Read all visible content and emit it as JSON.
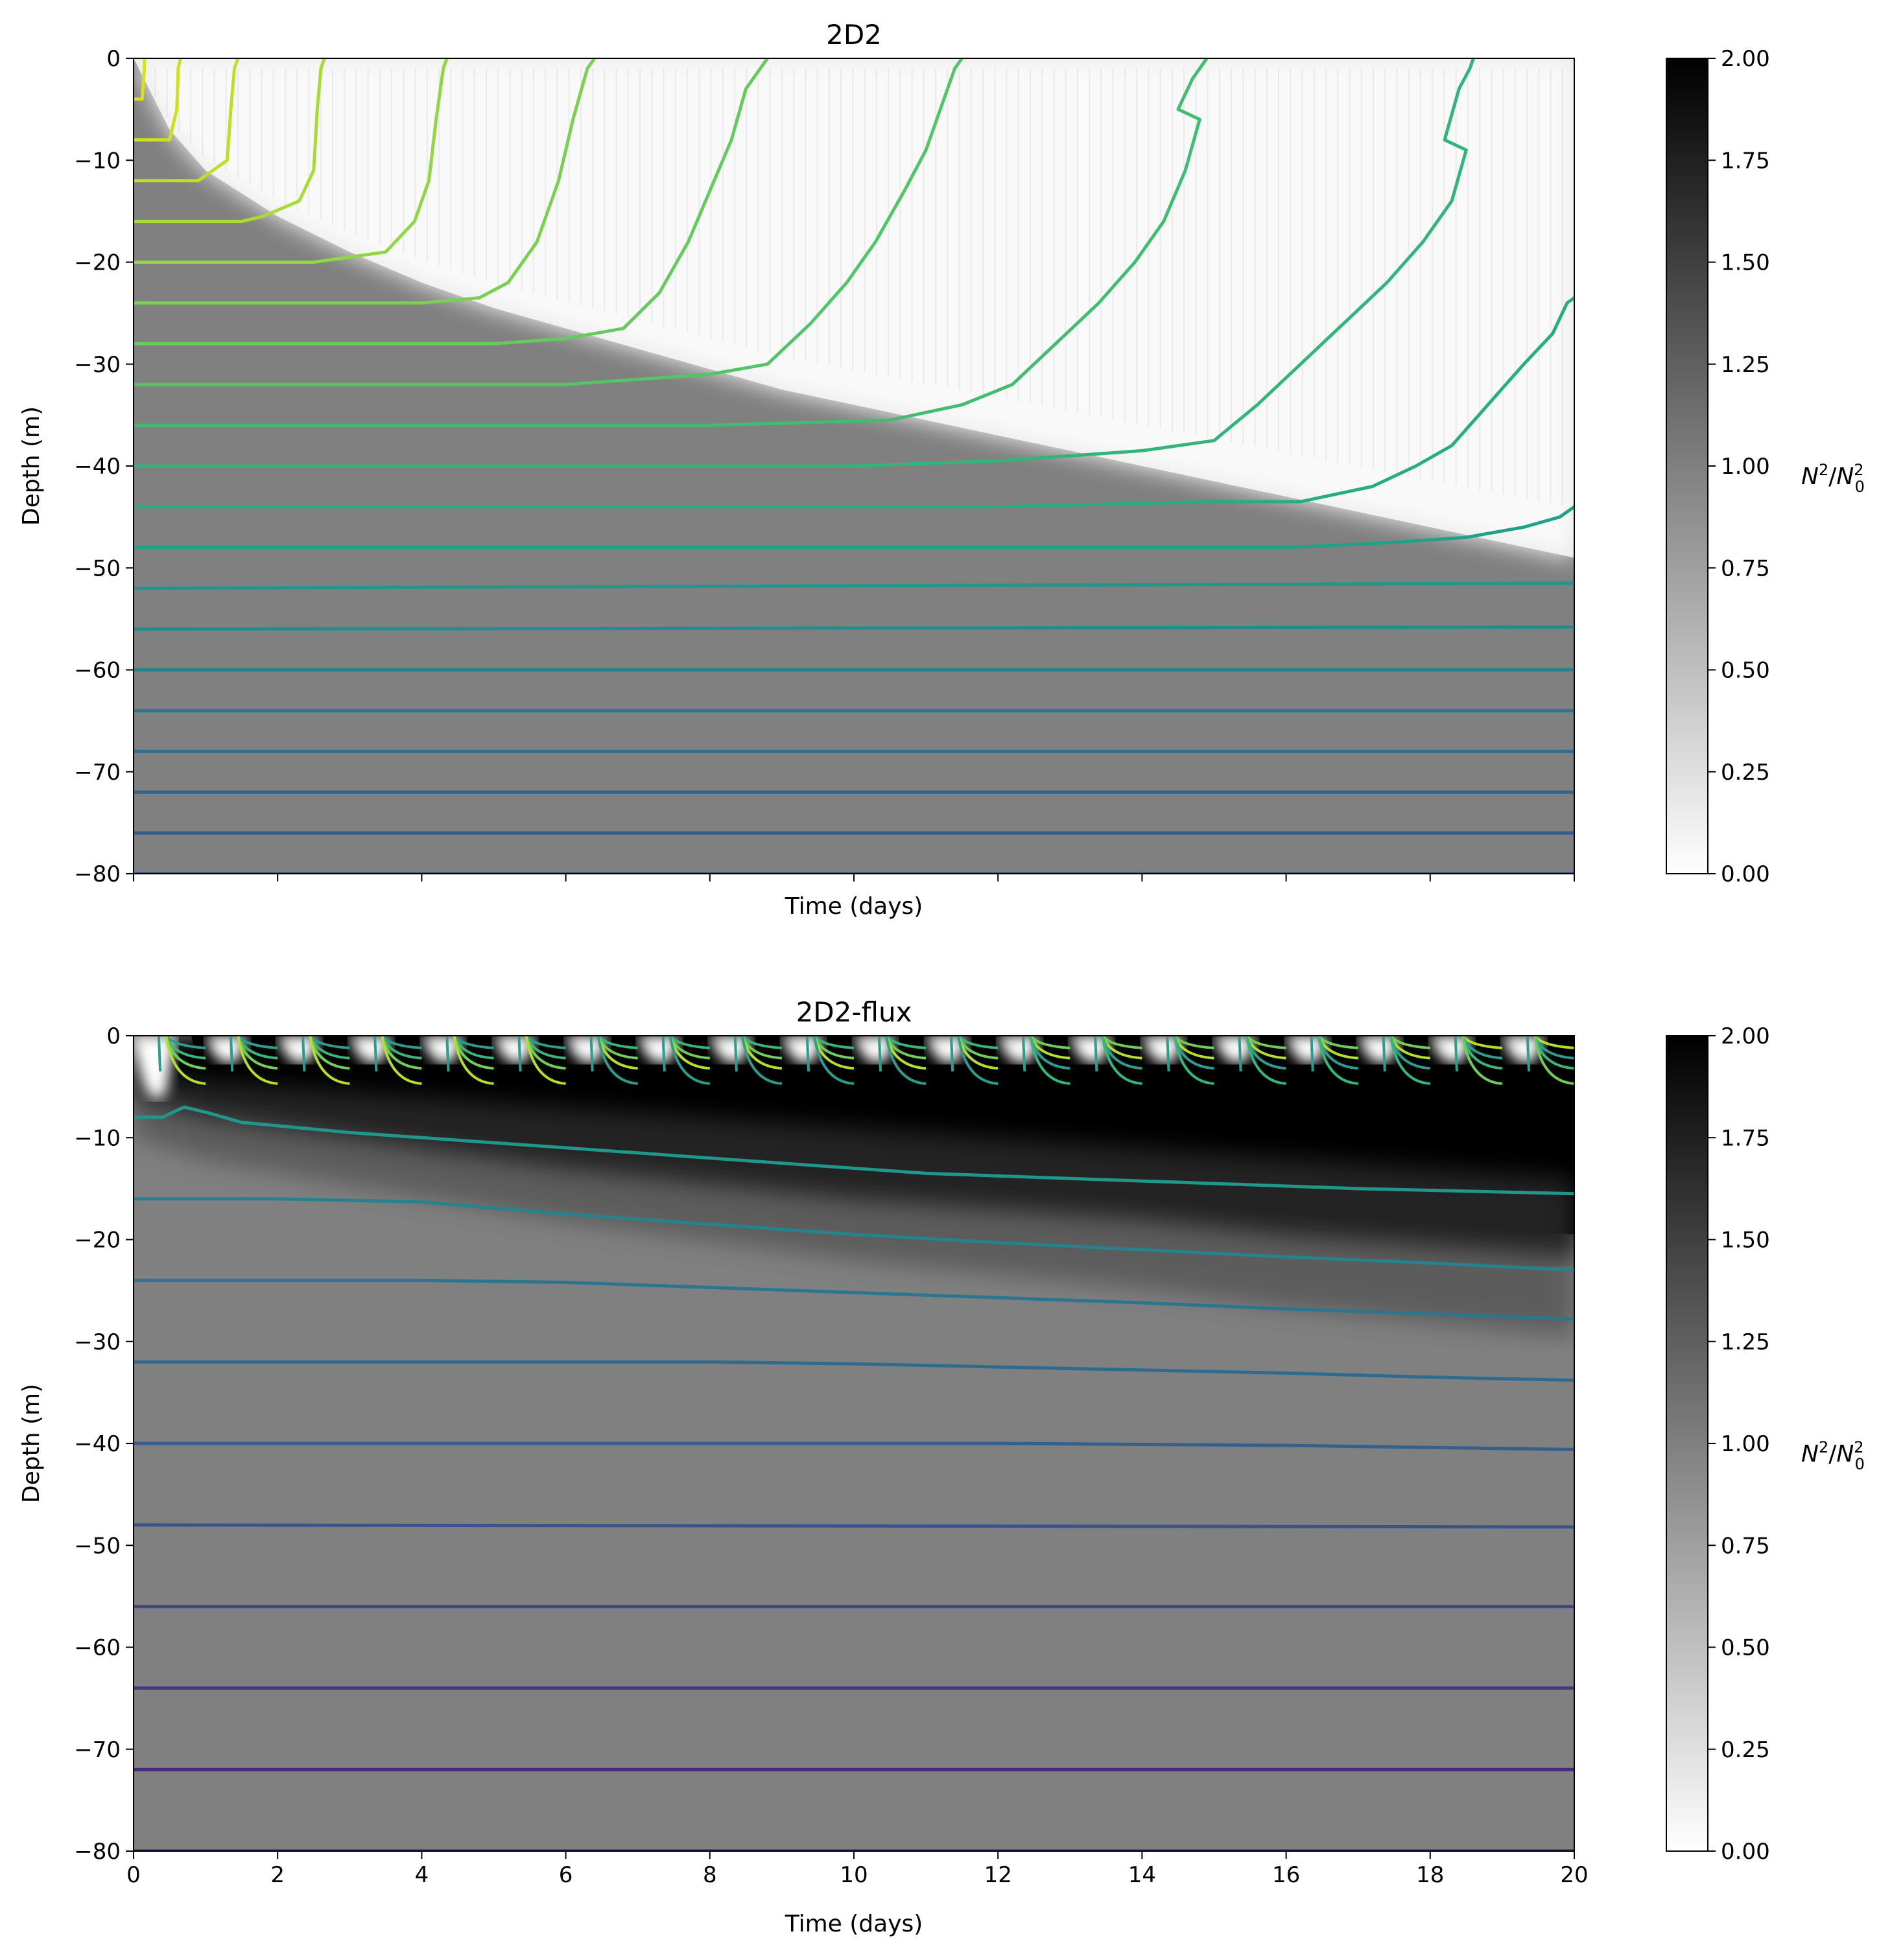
{
  "chart_data": [
    {
      "type": "heatmap",
      "title": "2D2",
      "xlabel": "Time (days)",
      "ylabel": "Depth (m)",
      "xlim": [
        0,
        20
      ],
      "ylim": [
        -80,
        0
      ],
      "x_ticks": [
        0,
        2,
        4,
        6,
        8,
        10,
        12,
        14,
        16,
        18,
        20
      ],
      "x_tick_labels_shown": false,
      "y_ticks": [
        0,
        -10,
        -20,
        -30,
        -40,
        -50,
        -60,
        -70,
        -80
      ],
      "y_tick_labels": [
        "0",
        "−10",
        "−20",
        "−30",
        "−40",
        "−50",
        "−60",
        "−70",
        "−80"
      ],
      "colorbar": {
        "label_base": "N",
        "label_sup": "2",
        "label_sep": "/",
        "label_base2": "N",
        "label_sub2": "0",
        "label_sup2": "2",
        "range": [
          0,
          2
        ],
        "ticks": [
          "0.00",
          "0.25",
          "0.50",
          "0.75",
          "1.00",
          "1.25",
          "1.50",
          "1.75",
          "2.00"
        ],
        "colormap": "greys"
      },
      "background_value": 1.0,
      "mixed_layer_value": 0.05,
      "mixed_layer_depth": {
        "x": [
          0,
          0.5,
          1,
          2,
          3,
          4,
          5,
          6,
          7,
          8,
          9,
          10,
          11,
          12,
          13,
          14,
          15,
          16,
          17,
          18,
          19,
          20
        ],
        "depth": [
          0,
          -7,
          -11,
          -15.5,
          -19,
          -22,
          -24.5,
          -26.5,
          -28.5,
          -30.5,
          -32.5,
          -34,
          -35.5,
          -37,
          -38.5,
          -40,
          -41.5,
          -43,
          -44.5,
          -46,
          -47.5,
          -49
        ]
      },
      "contour_colormap": "viridis",
      "contours": [
        {
          "level": -4,
          "color": "#d8e219",
          "points": [
            [
              0,
              -4
            ],
            [
              0.12,
              -4
            ],
            [
              0.15,
              -1
            ],
            [
              0.15,
              0
            ]
          ]
        },
        {
          "level": -8,
          "color": "#cde11d",
          "points": [
            [
              0,
              -8
            ],
            [
              0.5,
              -8
            ],
            [
              0.6,
              -5
            ],
            [
              0.62,
              -1
            ],
            [
              0.65,
              0
            ]
          ]
        },
        {
          "level": -12,
          "color": "#bddf26",
          "points": [
            [
              0,
              -12
            ],
            [
              0.9,
              -12
            ],
            [
              1.3,
              -10
            ],
            [
              1.35,
              -5
            ],
            [
              1.4,
              -1
            ],
            [
              1.45,
              0
            ]
          ]
        },
        {
          "level": -16,
          "color": "#a8db34",
          "points": [
            [
              0,
              -16
            ],
            [
              1.5,
              -16
            ],
            [
              1.8,
              -15.5
            ],
            [
              2.3,
              -14
            ],
            [
              2.5,
              -11
            ],
            [
              2.55,
              -5
            ],
            [
              2.6,
              -1
            ],
            [
              2.65,
              0
            ]
          ]
        },
        {
          "level": -20,
          "color": "#90d743",
          "points": [
            [
              0,
              -20
            ],
            [
              2.5,
              -20
            ],
            [
              3.0,
              -19.5
            ],
            [
              3.5,
              -19
            ],
            [
              3.9,
              -16
            ],
            [
              4.1,
              -12
            ],
            [
              4.2,
              -6
            ],
            [
              4.3,
              -1
            ],
            [
              4.35,
              0
            ]
          ]
        },
        {
          "level": -24,
          "color": "#7ad151",
          "points": [
            [
              0,
              -24
            ],
            [
              4,
              -24
            ],
            [
              4.8,
              -23.5
            ],
            [
              5.2,
              -22
            ],
            [
              5.6,
              -18
            ],
            [
              5.9,
              -12
            ],
            [
              6.1,
              -6
            ],
            [
              6.3,
              -1
            ],
            [
              6.4,
              0
            ]
          ]
        },
        {
          "level": -28,
          "color": "#65cb5e",
          "points": [
            [
              0,
              -28
            ],
            [
              5,
              -28
            ],
            [
              6,
              -27.5
            ],
            [
              6.8,
              -26.5
            ],
            [
              7.3,
              -23
            ],
            [
              7.7,
              -18
            ],
            [
              8.0,
              -13
            ],
            [
              8.3,
              -8
            ],
            [
              8.5,
              -3
            ],
            [
              8.7,
              -1
            ],
            [
              8.8,
              0
            ]
          ]
        },
        {
          "level": -32,
          "color": "#52c569",
          "points": [
            [
              0,
              -32
            ],
            [
              6,
              -32
            ],
            [
              8,
              -31
            ],
            [
              8.8,
              -30
            ],
            [
              9.4,
              -26
            ],
            [
              9.9,
              -22
            ],
            [
              10.3,
              -18
            ],
            [
              10.7,
              -13
            ],
            [
              11.0,
              -9
            ],
            [
              11.2,
              -5
            ],
            [
              11.4,
              -1
            ],
            [
              11.5,
              0
            ]
          ]
        },
        {
          "level": -36,
          "color": "#40bd72",
          "points": [
            [
              0,
              -36
            ],
            [
              8,
              -36
            ],
            [
              10.5,
              -35.5
            ],
            [
              11.5,
              -34
            ],
            [
              12.2,
              -32
            ],
            [
              12.8,
              -28
            ],
            [
              13.4,
              -24
            ],
            [
              13.9,
              -20
            ],
            [
              14.3,
              -16
            ],
            [
              14.6,
              -11
            ],
            [
              14.8,
              -6
            ],
            [
              14.5,
              -5
            ],
            [
              14.7,
              -2
            ],
            [
              14.8,
              -1
            ],
            [
              14.9,
              0
            ]
          ]
        },
        {
          "level": -40,
          "color": "#31b57b",
          "points": [
            [
              0,
              -40
            ],
            [
              10,
              -40
            ],
            [
              12,
              -39.5
            ],
            [
              13,
              -39
            ],
            [
              14,
              -38.5
            ],
            [
              15,
              -37.5
            ],
            [
              15.6,
              -34
            ],
            [
              16.2,
              -30
            ],
            [
              16.8,
              -26
            ],
            [
              17.4,
              -22
            ],
            [
              17.9,
              -18
            ],
            [
              18.3,
              -14
            ],
            [
              18.5,
              -9
            ],
            [
              18.2,
              -8
            ],
            [
              18.4,
              -3
            ],
            [
              18.55,
              -1
            ],
            [
              18.6,
              0
            ]
          ]
        },
        {
          "level": -44,
          "color": "#26ad81",
          "points": [
            [
              0,
              -44
            ],
            [
              12,
              -44
            ],
            [
              15,
              -43.5
            ],
            [
              16.2,
              -43.5
            ],
            [
              17.2,
              -42
            ],
            [
              17.8,
              -40
            ],
            [
              18.3,
              -38
            ],
            [
              18.8,
              -34
            ],
            [
              19.3,
              -30
            ],
            [
              19.7,
              -27
            ],
            [
              19.9,
              -24
            ],
            [
              20,
              -23.5
            ]
          ]
        },
        {
          "level": -48,
          "color": "#1fa287",
          "points": [
            [
              0,
              -48
            ],
            [
              14,
              -48
            ],
            [
              16,
              -48
            ],
            [
              17.5,
              -47.5
            ],
            [
              18.5,
              -47
            ],
            [
              19.3,
              -46
            ],
            [
              19.8,
              -45
            ],
            [
              20,
              -44
            ]
          ]
        },
        {
          "level": -52,
          "color": "#1f988b",
          "points": [
            [
              0,
              -52
            ],
            [
              20,
              -51.5
            ]
          ]
        },
        {
          "level": -56,
          "color": "#228d8d",
          "points": [
            [
              0,
              -56
            ],
            [
              20,
              -55.8
            ]
          ]
        },
        {
          "level": -60,
          "color": "#25838e",
          "points": [
            [
              0,
              -60
            ],
            [
              20,
              -60
            ]
          ]
        },
        {
          "level": -64,
          "color": "#29788e",
          "points": [
            [
              0,
              -64
            ],
            [
              20,
              -64
            ]
          ]
        },
        {
          "level": -68,
          "color": "#2c6e8e",
          "points": [
            [
              0,
              -68
            ],
            [
              20,
              -68
            ]
          ]
        },
        {
          "level": -72,
          "color": "#31648d",
          "points": [
            [
              0,
              -72
            ],
            [
              20,
              -72
            ]
          ]
        },
        {
          "level": -76,
          "color": "#365a8c",
          "points": [
            [
              0,
              -76
            ],
            [
              20,
              -76
            ]
          ]
        },
        {
          "level": -80,
          "color": "#3b518b",
          "points": [
            [
              0,
              -80
            ],
            [
              20,
              -80
            ]
          ]
        }
      ]
    },
    {
      "type": "heatmap",
      "title": "2D2-flux",
      "xlabel": "Time (days)",
      "ylabel": "Depth (m)",
      "xlim": [
        0,
        20
      ],
      "ylim": [
        -80,
        0
      ],
      "x_ticks": [
        0,
        2,
        4,
        6,
        8,
        10,
        12,
        14,
        16,
        18,
        20
      ],
      "x_tick_labels": [
        "0",
        "2",
        "4",
        "6",
        "8",
        "10",
        "12",
        "14",
        "16",
        "18",
        "20"
      ],
      "x_tick_labels_shown": true,
      "y_ticks": [
        0,
        -10,
        -20,
        -30,
        -40,
        -50,
        -60,
        -70,
        -80
      ],
      "y_tick_labels": [
        "0",
        "−10",
        "−20",
        "−30",
        "−40",
        "−50",
        "−60",
        "−70",
        "−80"
      ],
      "colorbar": {
        "label_base": "N",
        "label_sup": "2",
        "label_sep": "/",
        "label_base2": "N",
        "label_sub2": "0",
        "label_sup2": "2",
        "range": [
          0,
          2
        ],
        "ticks": [
          "0.00",
          "0.25",
          "0.50",
          "0.75",
          "1.00",
          "1.25",
          "1.50",
          "1.75",
          "2.00"
        ],
        "colormap": "greys"
      },
      "background_value": 1.0,
      "stratified_layer_value": 2.0,
      "stratified_layer_bottom": {
        "x": [
          0,
          1,
          2,
          4,
          6,
          8,
          10,
          12,
          14,
          16,
          18,
          20
        ],
        "depth": [
          -6,
          -8,
          -9,
          -11,
          -13,
          -14.5,
          -16,
          -17,
          -18,
          -19.5,
          -20.5,
          -21.5
        ]
      },
      "diurnal_cycles": 20,
      "contour_colormap": "viridis",
      "contours": [
        {
          "level": -8,
          "color": "#1f988b",
          "points": [
            [
              0,
              -8
            ],
            [
              0.4,
              -8
            ],
            [
              0.7,
              -7
            ],
            [
              1,
              -7.5
            ],
            [
              1.5,
              -8.5
            ],
            [
              3,
              -9.5
            ],
            [
              5,
              -10.5
            ],
            [
              7,
              -11.5
            ],
            [
              9,
              -12.5
            ],
            [
              11,
              -13.5
            ],
            [
              13,
              -14
            ],
            [
              15,
              -14.5
            ],
            [
              17,
              -15
            ],
            [
              20,
              -15.5
            ]
          ]
        },
        {
          "level": -16,
          "color": "#25838e",
          "points": [
            [
              0,
              -16
            ],
            [
              2,
              -16
            ],
            [
              4,
              -16.3
            ],
            [
              6,
              -17.5
            ],
            [
              8,
              -18.5
            ],
            [
              10,
              -19.5
            ],
            [
              12,
              -20.3
            ],
            [
              14,
              -21
            ],
            [
              16,
              -21.7
            ],
            [
              18,
              -22.3
            ],
            [
              20,
              -23
            ]
          ]
        },
        {
          "level": -24,
          "color": "#2a768e",
          "points": [
            [
              0,
              -24
            ],
            [
              4,
              -24
            ],
            [
              6,
              -24.2
            ],
            [
              8,
              -24.7
            ],
            [
              10,
              -25.2
            ],
            [
              12,
              -25.7
            ],
            [
              14,
              -26.2
            ],
            [
              16,
              -26.8
            ],
            [
              18,
              -27.3
            ],
            [
              20,
              -27.8
            ]
          ]
        },
        {
          "level": -32,
          "color": "#2f6b8e",
          "points": [
            [
              0,
              -32
            ],
            [
              8,
              -32
            ],
            [
              10,
              -32.2
            ],
            [
              12,
              -32.5
            ],
            [
              14,
              -32.8
            ],
            [
              16,
              -33.1
            ],
            [
              18,
              -33.5
            ],
            [
              20,
              -33.8
            ]
          ]
        },
        {
          "level": -40,
          "color": "#355f8d",
          "points": [
            [
              0,
              -40
            ],
            [
              12,
              -40
            ],
            [
              16,
              -40.2
            ],
            [
              20,
              -40.6
            ]
          ]
        },
        {
          "level": -48,
          "color": "#3b528b",
          "points": [
            [
              0,
              -48
            ],
            [
              20,
              -48.2
            ]
          ]
        },
        {
          "level": -56,
          "color": "#414487",
          "points": [
            [
              0,
              -56
            ],
            [
              20,
              -56
            ]
          ]
        },
        {
          "level": -64,
          "color": "#453781",
          "points": [
            [
              0,
              -64
            ],
            [
              20,
              -64
            ]
          ]
        },
        {
          "level": -72,
          "color": "#482878",
          "points": [
            [
              0,
              -72
            ],
            [
              20,
              -72
            ]
          ]
        },
        {
          "level": -80,
          "color": "#481a6c",
          "points": [
            [
              0,
              -80
            ],
            [
              20,
              -80
            ]
          ]
        }
      ]
    }
  ]
}
